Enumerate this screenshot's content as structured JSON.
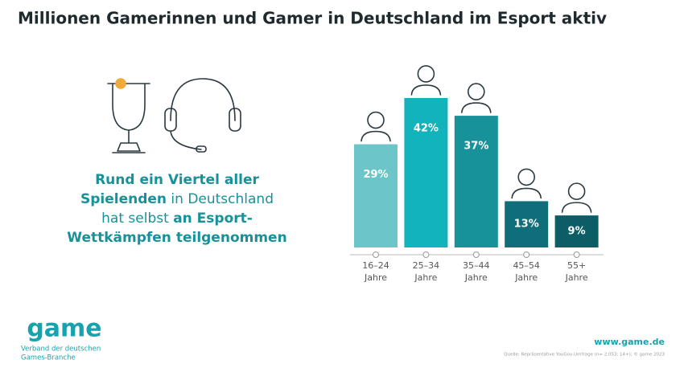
{
  "chart_data": {
    "type": "bar",
    "title": "Millionen Gamerinnen und Gamer in Deutschland im Esport aktiv",
    "categories": [
      [
        "16–24",
        "Jahre"
      ],
      [
        "25–34",
        "Jahre"
      ],
      [
        "35–44",
        "Jahre"
      ],
      [
        "45–54",
        "Jahre"
      ],
      [
        "55+",
        "Jahre"
      ]
    ],
    "values": [
      29,
      42,
      37,
      13,
      9
    ],
    "value_labels": [
      "29%",
      "42%",
      "37%",
      "13%",
      "9%"
    ],
    "colors": [
      "#6cc5c9",
      "#12b3bb",
      "#17919a",
      "#0f6e79",
      "#0d5d66"
    ]
  },
  "callout": [
    [
      {
        "text": "Rund ein Viertel aller",
        "bold": true
      }
    ],
    [
      {
        "text": "Spielenden",
        "bold": true
      },
      {
        "text": " in Deutschland",
        "bold": false
      }
    ],
    [
      {
        "text": "hat selbst ",
        "bold": false
      },
      {
        "text": "an Esport-",
        "bold": true
      }
    ],
    [
      {
        "text": "Wettkämpfen teilgenommen",
        "bold": true
      }
    ]
  ],
  "logo": {
    "name": "game",
    "line1": "Verband der deutschen",
    "line2": "Games-Branche"
  },
  "footer": {
    "url": "www.game.de",
    "source": "Quelle: Repräsentative YouGov-Umfrage (n= 2.053; 14+); © game 2023"
  }
}
